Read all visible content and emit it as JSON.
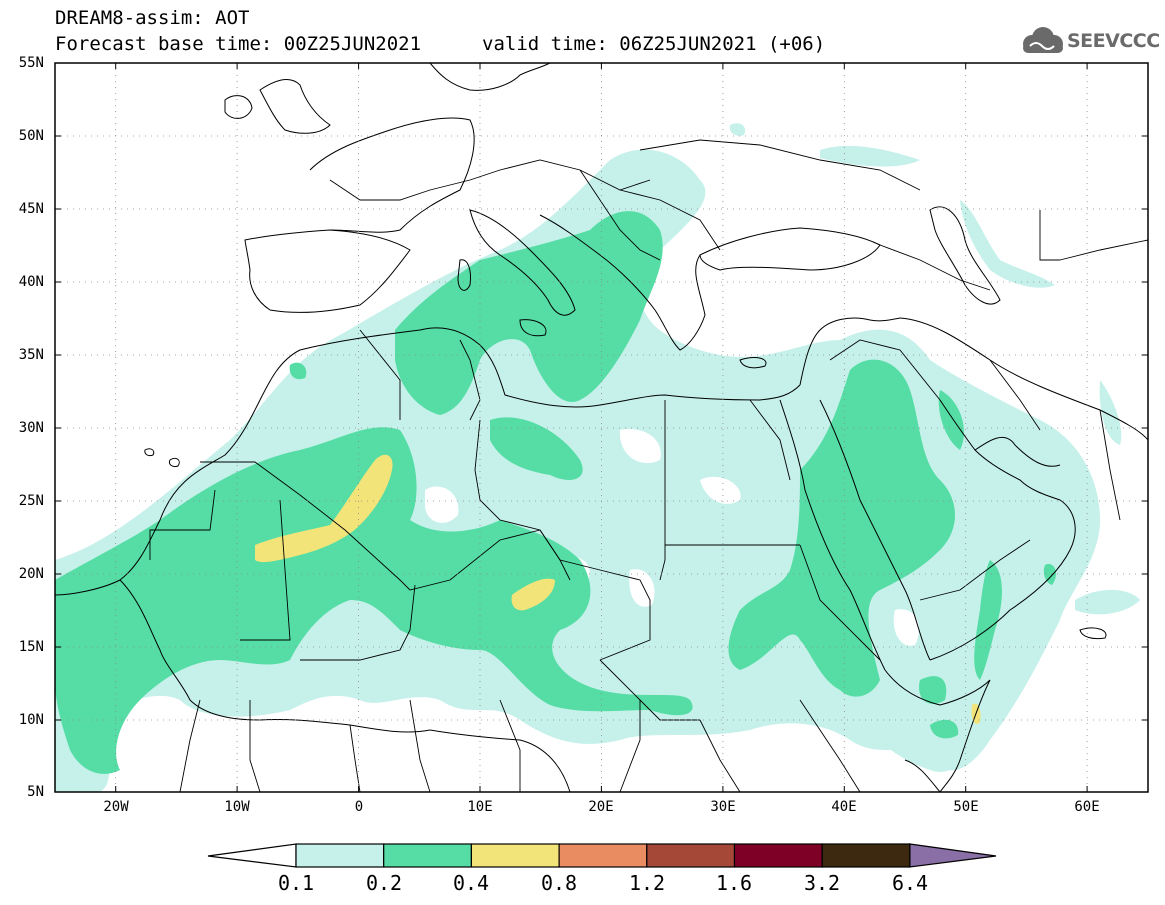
{
  "header": {
    "title": "DREAM8-assim: AOT",
    "base_time": "Forecast base time: 00Z25JUN2021",
    "valid_time": "valid time: 06Z25JUN2021 (+06)",
    "logo_text": "SEEVCCC"
  },
  "axes": {
    "lat_labels": [
      "55N",
      "50N",
      "45N",
      "40N",
      "35N",
      "30N",
      "25N",
      "20N",
      "15N",
      "10N",
      "5N"
    ],
    "lon_labels": [
      "20W",
      "10W",
      "0",
      "10E",
      "20E",
      "30E",
      "40E",
      "50E",
      "60E"
    ],
    "lat_range": [
      5,
      55
    ],
    "lon_range": [
      -25,
      65
    ]
  },
  "colorbar": {
    "labels": [
      "0.1",
      "0.2",
      "0.4",
      "0.8",
      "1.2",
      "1.6",
      "3.2",
      "6.4"
    ],
    "colors": [
      "#ffffff",
      "#c5f1ea",
      "#55dda5",
      "#f3e47a",
      "#e98c62",
      "#a54838",
      "#7e0026",
      "#3d2810",
      "#8a6ea6"
    ]
  }
}
